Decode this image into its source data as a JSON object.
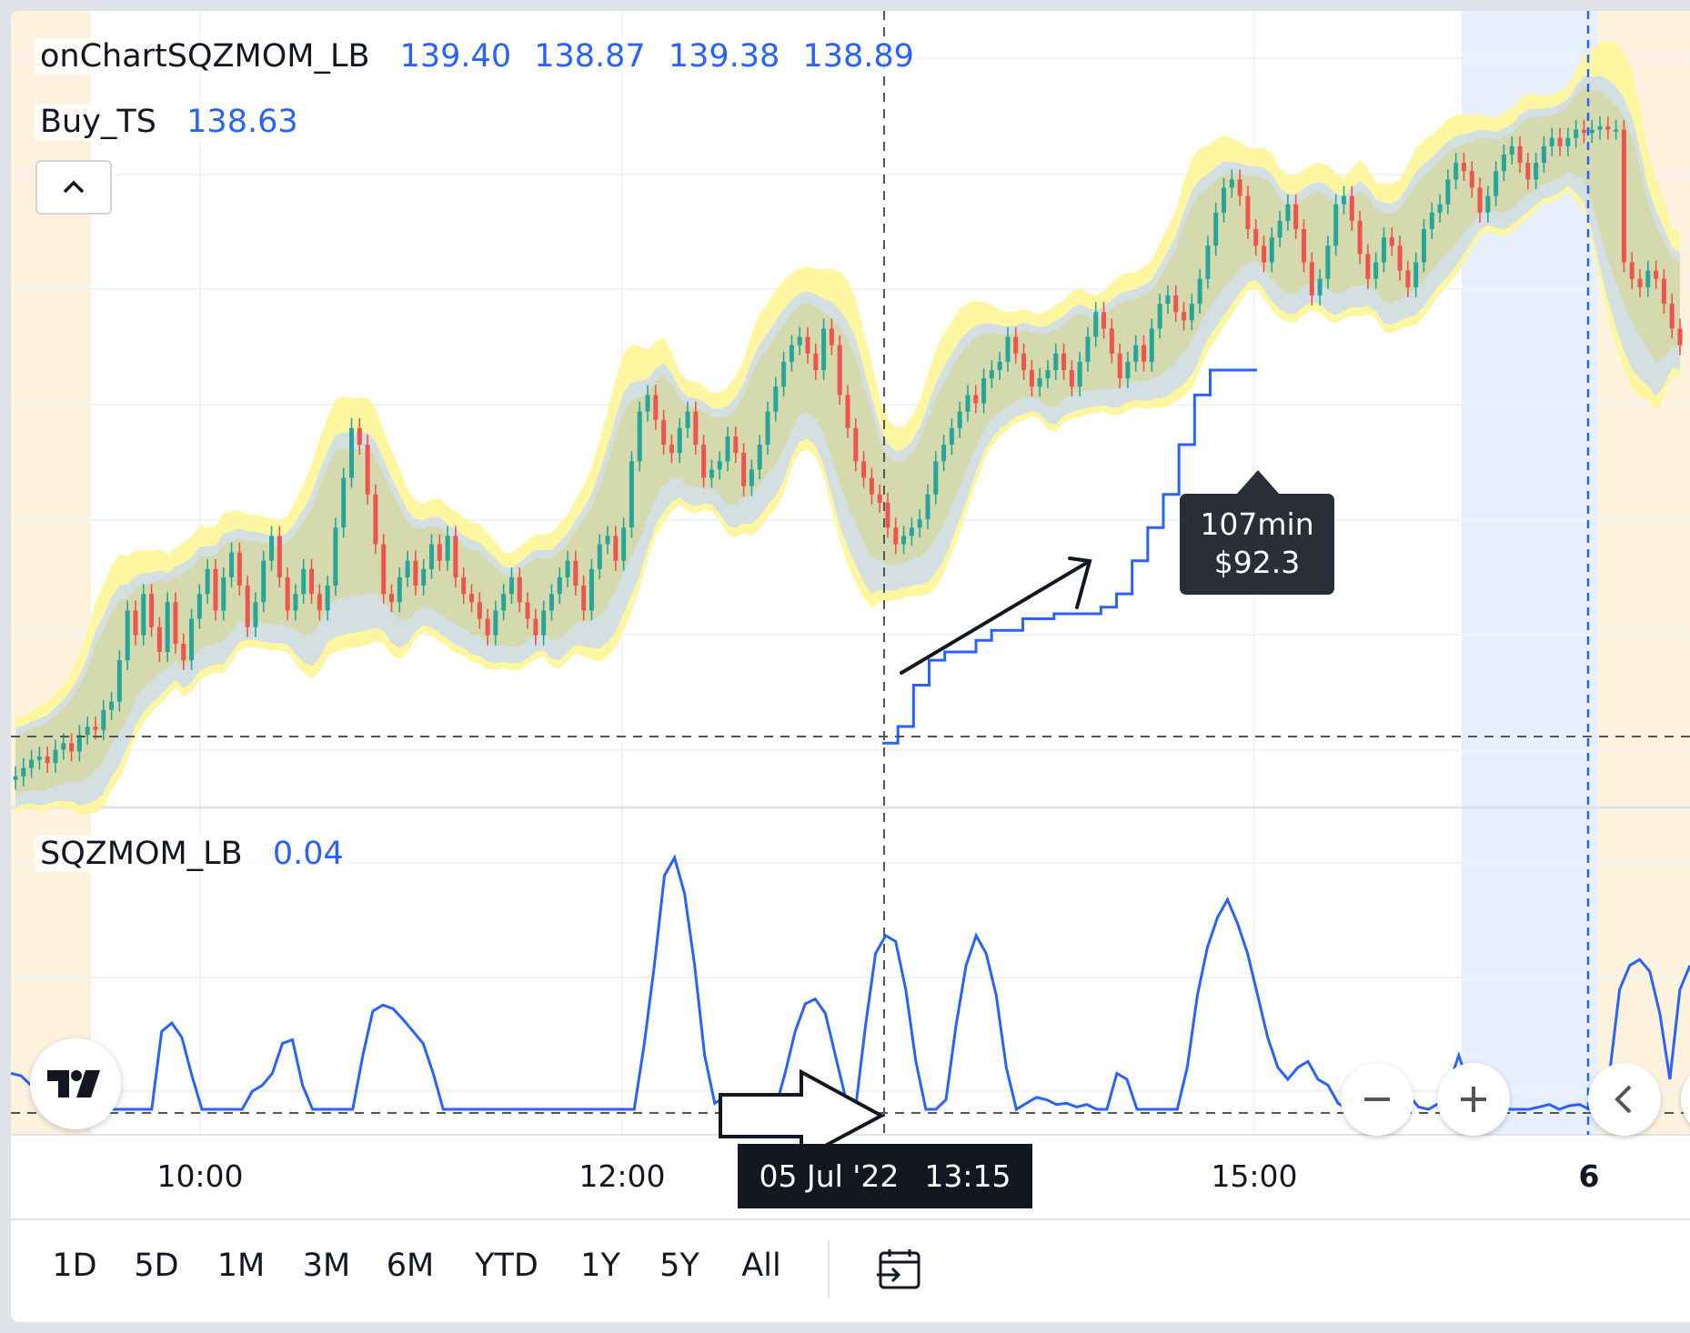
{
  "chart_data": {
    "type": "candlestick",
    "price_panel": {
      "study_name": "onChartSQZMOM_LB",
      "ohlc": [
        "139.40",
        "138.87",
        "139.38",
        "138.89"
      ],
      "overlay_name": "Buy_TS",
      "overlay_value": "138.63",
      "price_range": [
        136.4,
        139.8
      ],
      "candles_close": [
        136.5,
        136.55,
        136.6,
        136.62,
        136.58,
        136.66,
        136.7,
        136.65,
        136.75,
        136.8,
        136.78,
        136.9,
        136.95,
        137.2,
        137.5,
        137.35,
        137.6,
        137.4,
        137.25,
        137.55,
        137.3,
        137.2,
        137.45,
        137.6,
        137.75,
        137.5,
        137.7,
        137.85,
        137.65,
        137.4,
        137.55,
        137.8,
        137.95,
        137.7,
        137.5,
        137.6,
        137.75,
        137.6,
        137.5,
        137.65,
        138.0,
        138.3,
        138.6,
        138.5,
        138.2,
        137.9,
        137.6,
        137.55,
        137.7,
        137.8,
        137.65,
        137.75,
        137.9,
        137.8,
        137.95,
        137.7,
        137.6,
        137.55,
        137.45,
        137.35,
        137.5,
        137.6,
        137.7,
        137.55,
        137.45,
        137.35,
        137.5,
        137.6,
        137.7,
        137.8,
        137.65,
        137.5,
        137.75,
        137.9,
        137.95,
        137.8,
        138.0,
        138.4,
        138.7,
        138.8,
        138.65,
        138.5,
        138.45,
        138.6,
        138.7,
        138.5,
        138.3,
        138.35,
        138.4,
        138.55,
        138.45,
        138.25,
        138.35,
        138.5,
        138.7,
        138.85,
        139.0,
        139.1,
        139.15,
        139.05,
        138.95,
        139.2,
        139.1,
        138.8,
        138.6,
        138.4,
        138.3,
        138.2,
        138.15,
        138.0,
        137.9,
        137.95,
        138.0,
        138.05,
        138.2,
        138.4,
        138.5,
        138.6,
        138.7,
        138.8,
        138.75,
        138.9,
        138.95,
        139.0,
        139.15,
        139.05,
        138.95,
        138.85,
        138.9,
        138.95,
        139.05,
        138.95,
        138.85,
        139.0,
        139.15,
        139.3,
        139.2,
        139.05,
        138.9,
        139.0,
        139.1,
        139.0,
        139.2,
        139.35,
        139.4,
        139.3,
        139.25,
        139.35,
        139.5,
        139.7,
        139.9,
        140.05,
        140.1,
        140.0,
        139.8,
        139.7,
        139.6,
        139.75,
        139.85,
        139.95,
        139.8,
        139.6,
        139.4,
        139.5,
        139.7,
        139.95,
        140.0,
        139.85,
        139.65,
        139.5,
        139.6,
        139.75,
        139.7,
        139.55,
        139.45,
        139.6,
        139.8,
        139.9,
        139.95,
        140.1,
        140.2,
        140.15,
        140.05,
        139.9,
        140.0,
        140.15,
        140.25,
        140.3,
        140.2,
        140.1,
        140.2,
        140.3,
        140.35,
        140.3,
        140.35,
        140.4,
        140.38,
        140.4,
        140.42,
        140.4,
        140.4,
        139.6,
        139.5,
        139.45,
        139.55,
        139.5,
        139.35,
        139.2,
        139.1
      ],
      "buy_ts_line": [
        136.7,
        136.8,
        137.05,
        137.2,
        137.25,
        137.25,
        137.32,
        137.38,
        137.38,
        137.45,
        137.45,
        137.48,
        137.48,
        137.48,
        137.52,
        137.6,
        137.8,
        138.0,
        138.2,
        138.5,
        138.8,
        138.95,
        138.95,
        138.95,
        138.95
      ]
    },
    "momentum_panel": {
      "name": "SQZMOM_LB",
      "value": "0.04",
      "series": [
        0.3,
        0.28,
        0.2,
        0.05,
        0,
        0,
        0,
        0,
        0,
        0,
        0,
        0,
        0,
        0,
        0,
        0.65,
        0.72,
        0.6,
        0.28,
        0,
        0,
        0,
        0,
        0,
        0.15,
        0.2,
        0.3,
        0.55,
        0.58,
        0.2,
        0,
        0,
        0,
        0,
        0,
        0.45,
        0.82,
        0.87,
        0.84,
        0.75,
        0.65,
        0.55,
        0.3,
        0,
        0,
        0,
        0,
        0,
        0,
        0,
        0,
        0,
        0,
        0,
        0,
        0,
        0,
        0,
        0,
        0,
        0,
        0,
        0,
        0.55,
        1.2,
        1.95,
        2.1,
        1.8,
        1.2,
        0.45,
        0.05,
        0.1,
        0.05,
        0.08,
        0,
        0,
        0,
        0.3,
        0.65,
        0.88,
        0.92,
        0.8,
        0.45,
        0.1,
        0,
        0.7,
        1.3,
        1.45,
        1.4,
        1.0,
        0.4,
        0,
        0,
        0.08,
        0.7,
        1.2,
        1.45,
        1.3,
        0.95,
        0.35,
        0,
        0.05,
        0.1,
        0.08,
        0.04,
        0.05,
        0.02,
        0.04,
        0,
        0,
        0.3,
        0.25,
        0,
        0,
        0,
        0,
        0,
        0.35,
        0.95,
        1.35,
        1.6,
        1.75,
        1.55,
        1.3,
        0.95,
        0.6,
        0.35,
        0.25,
        0.35,
        0.4,
        0.25,
        0.2,
        0.05,
        0,
        0.05,
        0.15,
        0.1,
        0.05,
        0.08,
        0.12,
        0.02,
        0,
        0.05,
        0.2,
        0.45,
        0.2,
        0.05,
        0,
        0,
        0,
        0,
        0,
        0.02,
        0.04,
        0,
        0.03,
        0.04,
        0,
        0,
        0.3,
        1.0,
        1.2,
        1.25,
        1.15,
        0.8,
        0.25,
        1.0,
        1.2
      ],
      "range": [
        0,
        2.2
      ]
    },
    "x_axis": {
      "tick_labels": [
        "10:00",
        "12:00",
        "15:00",
        "6"
      ],
      "crosshair_date": "05 Jul '22",
      "crosshair_time": "13:15"
    },
    "annotation": {
      "line1": "107min",
      "line2": "$92.3"
    }
  },
  "toolbar": {
    "ranges": [
      "1D",
      "5D",
      "1M",
      "3M",
      "6M",
      "YTD",
      "1Y",
      "5Y",
      "All"
    ],
    "goto_icon": "calendar-goto-icon"
  },
  "colors": {
    "up": "#26a69a",
    "down": "#ef5350",
    "accent": "#2962ff",
    "yellow_band": "#fff59d",
    "blue_band": "#c5d7f7",
    "olive_band": "#d4d8a8",
    "session_orange": "#fff3e0",
    "session_blue": "#e8efff"
  }
}
